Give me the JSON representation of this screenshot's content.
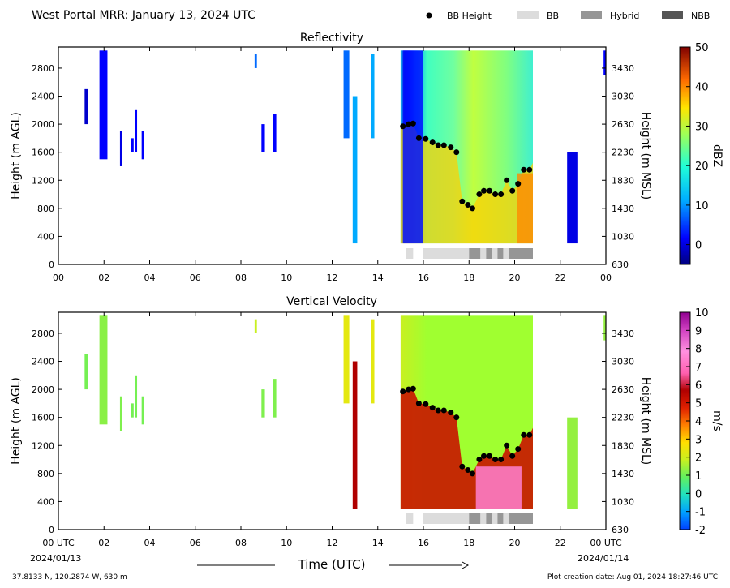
{
  "header": {
    "title": "West Portal MRR:  January 13, 2024 UTC",
    "legend": [
      {
        "label": "BB Height",
        "kind": "marker",
        "color": "#000000"
      },
      {
        "label": "BB",
        "kind": "swatch",
        "color": "#dcdcdc"
      },
      {
        "label": "Hybrid",
        "kind": "swatch",
        "color": "#969696"
      },
      {
        "label": "NBB",
        "kind": "swatch",
        "color": "#555555"
      }
    ]
  },
  "footer": {
    "location": "37.8133 N, 120.2874 W, 630 m",
    "creation": "Plot creation date: Aug 01, 2024 18:27:46 UTC",
    "xlabel": "Time (UTC)",
    "start_label": "00 UTC",
    "start_date": "2024/01/13",
    "end_label": "00 UTC",
    "end_date": "2024/01/14"
  },
  "colors": {
    "bb": "#dcdcdc",
    "hybrid": "#969696",
    "nbb": "#555555",
    "marker": "#000000"
  },
  "chart_data": [
    {
      "type": "heatmap",
      "title": "Reflectivity",
      "xlabel": "",
      "ylabel": "Height (m AGL)",
      "ylabel_right": "Height (m MSL)",
      "xlim": [
        0,
        24
      ],
      "ylim": [
        0,
        3100
      ],
      "xticks": [
        "00",
        "02",
        "04",
        "06",
        "08",
        "10",
        "12",
        "14",
        "16",
        "18",
        "20",
        "22",
        "00"
      ],
      "yticks": [
        0,
        400,
        800,
        1200,
        1600,
        2000,
        2400,
        2800
      ],
      "yticks_right": [
        "630",
        "1030",
        "1430",
        "1830",
        "2230",
        "2630",
        "3030",
        "3430"
      ],
      "colorbar": {
        "label": "dBZ",
        "min": -5,
        "max": 50,
        "ticks": [
          0,
          10,
          20,
          30,
          40,
          50
        ],
        "colormap": "jet"
      }
    },
    {
      "type": "heatmap",
      "title": "Vertical Velocity",
      "xlabel": "Time (UTC)",
      "ylabel": "Height (m AGL)",
      "ylabel_right": "Height (m MSL)",
      "xlim": [
        0,
        24
      ],
      "ylim": [
        0,
        3100
      ],
      "xticks": [
        "00 UTC",
        "02",
        "04",
        "06",
        "08",
        "10",
        "12",
        "14",
        "16",
        "18",
        "20",
        "22",
        "00 UTC"
      ],
      "yticks": [
        0,
        400,
        800,
        1200,
        1600,
        2000,
        2400,
        2800
      ],
      "yticks_right": [
        "630",
        "1030",
        "1430",
        "1830",
        "2230",
        "2630",
        "3030",
        "3430"
      ],
      "colorbar": {
        "label": "m/s",
        "min": -2,
        "max": 10,
        "ticks": [
          -2,
          -1,
          0,
          1,
          2,
          3,
          4,
          5,
          6,
          7,
          8,
          9,
          10
        ],
        "colormap": "velocity"
      }
    }
  ],
  "bb_heights": {
    "type": "scatter",
    "name": "BB Height",
    "x": [
      15.1,
      15.35,
      15.55,
      15.8,
      16.1,
      16.4,
      16.65,
      16.9,
      17.2,
      17.45,
      17.7,
      17.95,
      18.15,
      18.45,
      18.65,
      18.9,
      19.15,
      19.4,
      19.65,
      19.9,
      20.15,
      20.4,
      20.65
    ],
    "y": [
      1970,
      2000,
      2010,
      1800,
      1790,
      1740,
      1700,
      1700,
      1670,
      1600,
      900,
      850,
      800,
      1000,
      1050,
      1050,
      1000,
      1000,
      1200,
      1050,
      1150,
      1350,
      1350
    ]
  },
  "bb_type": [
    {
      "start": 15.25,
      "end": 15.55,
      "type": "BB"
    },
    {
      "start": 16.0,
      "end": 18.0,
      "type": "BB"
    },
    {
      "start": 18.0,
      "end": 18.5,
      "type": "Hybrid"
    },
    {
      "start": 18.5,
      "end": 18.75,
      "type": "BB"
    },
    {
      "start": 18.75,
      "end": 19.0,
      "type": "Hybrid"
    },
    {
      "start": 19.0,
      "end": 19.25,
      "type": "BB"
    },
    {
      "start": 19.25,
      "end": 19.5,
      "type": "Hybrid"
    },
    {
      "start": 19.5,
      "end": 19.75,
      "type": "BB"
    },
    {
      "start": 19.75,
      "end": 20.8,
      "type": "Hybrid"
    }
  ],
  "echoes": [
    {
      "start": 1.15,
      "end": 1.3,
      "bottom": 2000,
      "top": 2500,
      "ref": -2,
      "vel": 1.2
    },
    {
      "start": 1.8,
      "end": 2.15,
      "bottom": 1500,
      "top": 3050,
      "ref": 0,
      "vel": 1.4
    },
    {
      "start": 2.7,
      "end": 2.8,
      "bottom": 1400,
      "top": 1900,
      "ref": -1,
      "vel": 1.3
    },
    {
      "start": 3.2,
      "end": 3.3,
      "bottom": 1600,
      "top": 1800,
      "ref": 0,
      "vel": 1.2
    },
    {
      "start": 3.35,
      "end": 3.45,
      "bottom": 1600,
      "top": 2200,
      "ref": 0,
      "vel": 1.2
    },
    {
      "start": 3.65,
      "end": 3.75,
      "bottom": 1500,
      "top": 1900,
      "ref": 0,
      "vel": 1.2
    },
    {
      "start": 8.6,
      "end": 8.7,
      "bottom": 2800,
      "top": 3000,
      "ref": 5,
      "vel": 2.0
    },
    {
      "start": 8.9,
      "end": 9.05,
      "bottom": 1600,
      "top": 2000,
      "ref": 0,
      "vel": 1.3
    },
    {
      "start": 9.4,
      "end": 9.55,
      "bottom": 1600,
      "top": 2150,
      "ref": 0,
      "vel": 1.3
    },
    {
      "start": 12.5,
      "end": 12.75,
      "bottom": 1800,
      "top": 3050,
      "ref": 5,
      "vel": 2.5
    },
    {
      "start": 12.9,
      "end": 13.1,
      "bottom": 300,
      "top": 2400,
      "ref": 8,
      "vel": 6.0
    },
    {
      "start": 13.7,
      "end": 13.85,
      "bottom": 1800,
      "top": 3000,
      "ref": 8,
      "vel": 2.5
    },
    {
      "start": 22.3,
      "end": 22.75,
      "bottom": 300,
      "top": 1600,
      "ref": -1,
      "vel": 1.5
    },
    {
      "start": 23.9,
      "end": 24.0,
      "bottom": 2700,
      "top": 3050,
      "ref": 0,
      "vel": 1.5
    }
  ],
  "main_event": {
    "start": 15.0,
    "end": 20.8,
    "bottom": 300,
    "top": 3050
  }
}
